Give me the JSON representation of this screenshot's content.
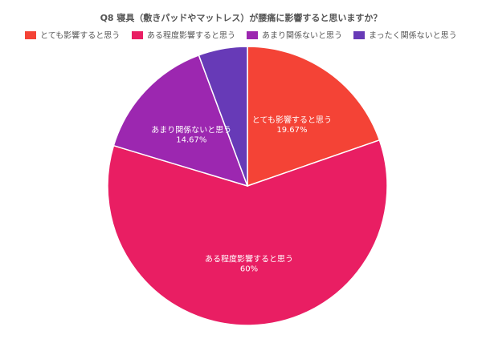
{
  "chart_data": {
    "type": "pie",
    "title": "Q8 寝具（敷きパッドやマットレス）が腰痛に影響すると思いますか？",
    "legend_position": "top",
    "slices": [
      {
        "label": "とても影響すると思う",
        "value": 19.67,
        "value_label": "19.67%",
        "color": "#f44336"
      },
      {
        "label": "ある程度影響すると思う",
        "value": 60,
        "value_label": "60%",
        "color": "#e91e63"
      },
      {
        "label": "あまり関係ないと思う",
        "value": 14.67,
        "value_label": "14.67%",
        "color": "#9c27b0"
      },
      {
        "label": "まったく関係ないと思う",
        "value": 5.66,
        "value_label": "",
        "color": "#673ab7"
      }
    ]
  }
}
